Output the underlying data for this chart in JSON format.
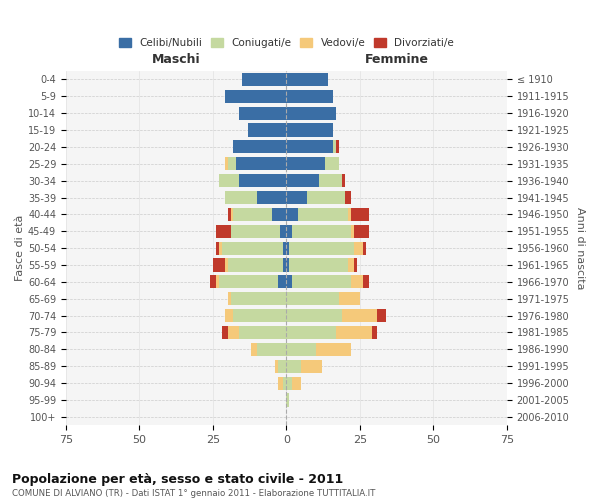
{
  "age_groups": [
    "0-4",
    "5-9",
    "10-14",
    "15-19",
    "20-24",
    "25-29",
    "30-34",
    "35-39",
    "40-44",
    "45-49",
    "50-54",
    "55-59",
    "60-64",
    "65-69",
    "70-74",
    "75-79",
    "80-84",
    "85-89",
    "90-94",
    "95-99",
    "100+"
  ],
  "birth_years": [
    "2006-2010",
    "2001-2005",
    "1996-2000",
    "1991-1995",
    "1986-1990",
    "1981-1985",
    "1976-1980",
    "1971-1975",
    "1966-1970",
    "1961-1965",
    "1956-1960",
    "1951-1955",
    "1946-1950",
    "1941-1945",
    "1936-1940",
    "1931-1935",
    "1926-1930",
    "1921-1925",
    "1916-1920",
    "1911-1915",
    "≤ 1910"
  ],
  "male": {
    "celibi": [
      15,
      21,
      16,
      13,
      18,
      17,
      16,
      10,
      5,
      2,
      1,
      1,
      3,
      0,
      0,
      0,
      0,
      0,
      0,
      0,
      0
    ],
    "coniugati": [
      0,
      0,
      0,
      0,
      0,
      3,
      7,
      11,
      13,
      17,
      21,
      19,
      20,
      19,
      18,
      16,
      10,
      3,
      1,
      0,
      0
    ],
    "vedovi": [
      0,
      0,
      0,
      0,
      0,
      1,
      0,
      0,
      1,
      0,
      1,
      1,
      1,
      1,
      3,
      4,
      2,
      1,
      2,
      0,
      0
    ],
    "divorziati": [
      0,
      0,
      0,
      0,
      0,
      0,
      0,
      0,
      1,
      5,
      1,
      4,
      2,
      0,
      0,
      2,
      0,
      0,
      0,
      0,
      0
    ]
  },
  "female": {
    "nubili": [
      14,
      16,
      17,
      16,
      16,
      13,
      11,
      7,
      4,
      2,
      1,
      1,
      2,
      0,
      0,
      0,
      0,
      0,
      0,
      0,
      0
    ],
    "coniugate": [
      0,
      0,
      0,
      0,
      1,
      5,
      8,
      13,
      17,
      20,
      22,
      20,
      20,
      18,
      19,
      17,
      10,
      5,
      2,
      1,
      0
    ],
    "vedove": [
      0,
      0,
      0,
      0,
      0,
      0,
      0,
      0,
      1,
      1,
      3,
      2,
      4,
      7,
      12,
      12,
      12,
      7,
      3,
      0,
      0
    ],
    "divorziate": [
      0,
      0,
      0,
      0,
      1,
      0,
      1,
      2,
      6,
      5,
      1,
      1,
      2,
      0,
      3,
      2,
      0,
      0,
      0,
      0,
      0
    ]
  },
  "colors": {
    "celibi": "#3a6ea5",
    "coniugati": "#c5d9a0",
    "vedovi": "#f5c97a",
    "divorziati": "#c0392b"
  },
  "xlim": 75,
  "title": "Popolazione per età, sesso e stato civile - 2011",
  "subtitle": "COMUNE DI ALVIANO (TR) - Dati ISTAT 1° gennaio 2011 - Elaborazione TUTTITALIA.IT",
  "ylabel_left": "Fasce di età",
  "ylabel_right": "Anni di nascita",
  "legend_labels": [
    "Celibi/Nubili",
    "Coniugati/e",
    "Vedovi/e",
    "Divorziati/e"
  ],
  "maschi_label": "Maschi",
  "femmine_label": "Femmine",
  "background_color": "#f5f5f5"
}
